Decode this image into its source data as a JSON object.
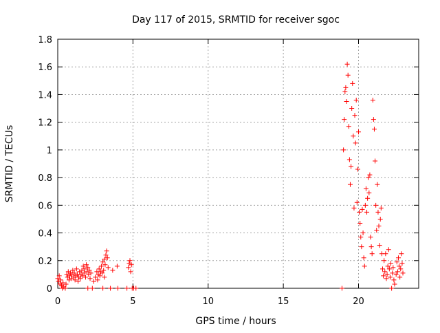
{
  "chart_data": {
    "type": "scatter",
    "title": "Day 117 of 2015, SRMTID for receiver sgoc",
    "xlabel": "GPS time / hours",
    "ylabel": "SRMTID / TECUs",
    "xlim": [
      0,
      24
    ],
    "ylim": [
      0,
      1.8
    ],
    "xticks": [
      0,
      5,
      10,
      15,
      20
    ],
    "xtick_labels": [
      "0",
      "5",
      "10",
      "15",
      "20"
    ],
    "yticks": [
      0,
      0.2,
      0.4,
      0.6,
      0.8,
      1,
      1.2,
      1.4,
      1.6,
      1.8
    ],
    "ytick_labels": [
      "0",
      "0.2",
      "0.4",
      "0.6",
      "0.8",
      "1",
      "1.2",
      "1.4",
      "1.6",
      "1.8"
    ],
    "grid": true,
    "marker": "+",
    "marker_color": "#ff0000",
    "series": [
      {
        "name": "sgoc",
        "points": [
          [
            0.0,
            0.07
          ],
          [
            0.05,
            0.05
          ],
          [
            0.1,
            0.09
          ],
          [
            0.15,
            0.03
          ],
          [
            0.2,
            0.06
          ],
          [
            0.25,
            0.02
          ],
          [
            0.3,
            0.0
          ],
          [
            0.35,
            0.04
          ],
          [
            0.4,
            0.01
          ],
          [
            0.5,
            0.0
          ],
          [
            0.55,
            0.03
          ],
          [
            0.6,
            0.1
          ],
          [
            0.65,
            0.08
          ],
          [
            0.7,
            0.12
          ],
          [
            0.75,
            0.06
          ],
          [
            0.8,
            0.09
          ],
          [
            0.85,
            0.11
          ],
          [
            0.9,
            0.07
          ],
          [
            0.95,
            0.1
          ],
          [
            1.0,
            0.13
          ],
          [
            1.05,
            0.08
          ],
          [
            1.1,
            0.11
          ],
          [
            1.15,
            0.06
          ],
          [
            1.2,
            0.09
          ],
          [
            1.25,
            0.14
          ],
          [
            1.3,
            0.1
          ],
          [
            1.35,
            0.05
          ],
          [
            1.4,
            0.08
          ],
          [
            1.45,
            0.12
          ],
          [
            1.5,
            0.07
          ],
          [
            1.55,
            0.1
          ],
          [
            1.6,
            0.13
          ],
          [
            1.65,
            0.09
          ],
          [
            1.7,
            0.16
          ],
          [
            1.75,
            0.11
          ],
          [
            1.8,
            0.14
          ],
          [
            1.85,
            0.08
          ],
          [
            1.9,
            0.17
          ],
          [
            1.95,
            0.12
          ],
          [
            2.0,
            0.15
          ],
          [
            2.05,
            0.1
          ],
          [
            2.1,
            0.13
          ],
          [
            2.15,
            0.07
          ],
          [
            2.2,
            0.11
          ],
          [
            2.0,
            0.0
          ],
          [
            2.3,
            0.0
          ],
          [
            2.4,
            0.05
          ],
          [
            2.5,
            0.08
          ],
          [
            2.6,
            0.12
          ],
          [
            2.65,
            0.06
          ],
          [
            2.7,
            0.1
          ],
          [
            2.75,
            0.14
          ],
          [
            2.8,
            0.09
          ],
          [
            2.85,
            0.12
          ],
          [
            2.9,
            0.16
          ],
          [
            2.95,
            0.11
          ],
          [
            3.0,
            0.19
          ],
          [
            3.05,
            0.13
          ],
          [
            3.1,
            0.21
          ],
          [
            3.15,
            0.17
          ],
          [
            3.2,
            0.24
          ],
          [
            3.25,
            0.27
          ],
          [
            3.3,
            0.22
          ],
          [
            3.35,
            0.15
          ],
          [
            3.1,
            0.08
          ],
          [
            3.0,
            0.0
          ],
          [
            3.5,
            0.0
          ],
          [
            3.65,
            0.13
          ],
          [
            3.95,
            0.16
          ],
          [
            4.0,
            0.0
          ],
          [
            4.6,
            0.0
          ],
          [
            4.7,
            0.15
          ],
          [
            4.75,
            0.18
          ],
          [
            4.8,
            0.2
          ],
          [
            4.85,
            0.12
          ],
          [
            4.9,
            0.17
          ],
          [
            4.95,
            0.0
          ],
          [
            5.05,
            0.0
          ],
          [
            5.2,
            0.0
          ],
          [
            18.9,
            0.0
          ],
          [
            19.0,
            1.0
          ],
          [
            19.05,
            1.22
          ],
          [
            19.1,
            1.42
          ],
          [
            19.15,
            1.45
          ],
          [
            19.2,
            1.35
          ],
          [
            19.25,
            1.62
          ],
          [
            19.3,
            1.54
          ],
          [
            19.35,
            1.17
          ],
          [
            19.4,
            0.93
          ],
          [
            19.45,
            0.75
          ],
          [
            19.5,
            0.88
          ],
          [
            19.55,
            1.3
          ],
          [
            19.6,
            1.48
          ],
          [
            19.65,
            1.1
          ],
          [
            19.7,
            0.58
          ],
          [
            19.75,
            1.25
          ],
          [
            19.8,
            1.05
          ],
          [
            19.85,
            1.36
          ],
          [
            19.9,
            0.62
          ],
          [
            19.95,
            0.86
          ],
          [
            20.0,
            1.13
          ],
          [
            20.05,
            0.55
          ],
          [
            20.1,
            0.47
          ],
          [
            20.15,
            0.37
          ],
          [
            20.2,
            0.3
          ],
          [
            20.25,
            0.57
          ],
          [
            20.3,
            0.4
          ],
          [
            20.35,
            0.22
          ],
          [
            20.4,
            0.16
          ],
          [
            20.45,
            0.6
          ],
          [
            20.5,
            0.72
          ],
          [
            20.55,
            0.55
          ],
          [
            20.6,
            0.65
          ],
          [
            20.65,
            0.8
          ],
          [
            20.7,
            0.69
          ],
          [
            20.75,
            0.82
          ],
          [
            20.8,
            0.37
          ],
          [
            20.85,
            0.3
          ],
          [
            20.9,
            0.25
          ],
          [
            20.95,
            1.36
          ],
          [
            21.0,
            1.22
          ],
          [
            21.05,
            1.15
          ],
          [
            21.1,
            0.92
          ],
          [
            21.15,
            0.6
          ],
          [
            21.2,
            0.42
          ],
          [
            21.25,
            0.75
          ],
          [
            21.3,
            0.55
          ],
          [
            21.35,
            0.45
          ],
          [
            21.4,
            0.31
          ],
          [
            21.45,
            0.5
          ],
          [
            21.5,
            0.58
          ],
          [
            21.55,
            0.25
          ],
          [
            21.6,
            0.14
          ],
          [
            21.65,
            0.09
          ],
          [
            21.7,
            0.2
          ],
          [
            21.75,
            0.12
          ],
          [
            21.8,
            0.25
          ],
          [
            21.85,
            0.07
          ],
          [
            21.9,
            0.1
          ],
          [
            21.95,
            0.16
          ],
          [
            22.0,
            0.28
          ],
          [
            22.05,
            0.14
          ],
          [
            22.1,
            0.08
          ],
          [
            22.15,
            0.18
          ],
          [
            22.2,
            0.0
          ],
          [
            22.25,
            0.11
          ],
          [
            22.3,
            0.15
          ],
          [
            22.35,
            0.06
          ],
          [
            22.4,
            0.03
          ],
          [
            22.5,
            0.1
          ],
          [
            22.55,
            0.19
          ],
          [
            22.6,
            0.12
          ],
          [
            22.65,
            0.22
          ],
          [
            22.7,
            0.16
          ],
          [
            22.75,
            0.08
          ],
          [
            22.8,
            0.14
          ],
          [
            22.85,
            0.25
          ],
          [
            22.9,
            0.18
          ],
          [
            22.95,
            0.11
          ]
        ]
      }
    ]
  }
}
